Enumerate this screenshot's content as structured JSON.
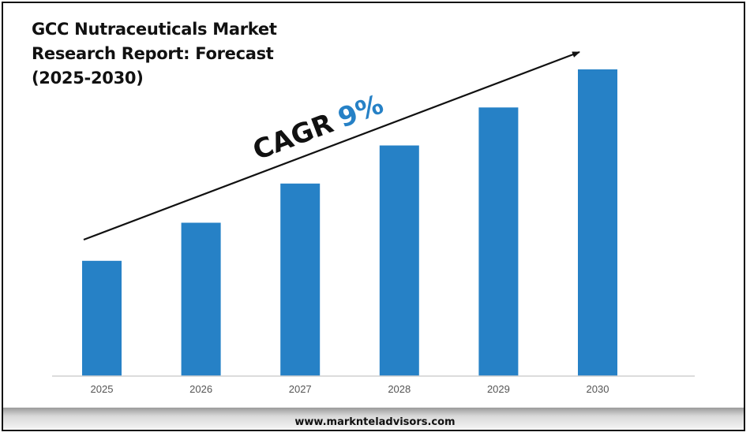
{
  "title_lines": [
    "GCC Nutraceuticals Market",
    "Research Report: Forecast",
    "(2025-2030)"
  ],
  "annotation": {
    "label": "CAGR",
    "value": "9%",
    "label_color": "#111111",
    "value_color": "#2681c6"
  },
  "footer": {
    "website": "www.marknteladvisors.com"
  },
  "colors": {
    "bar": "#2681c6",
    "axis": "#d0d0d0",
    "arrow": "#111111"
  },
  "chart_data": {
    "type": "bar",
    "title": "GCC Nutraceuticals Market Research Report: Forecast (2025-2030)",
    "categories": [
      "2025",
      "2026",
      "2027",
      "2028",
      "2029",
      "2030"
    ],
    "values": [
      100,
      133,
      167,
      200,
      233,
      266
    ],
    "value_note": "relative bar heights, no axis values shown",
    "xlabel": "",
    "ylabel": "",
    "ylim": [
      0,
      266
    ],
    "grid": false,
    "legend": "none"
  }
}
